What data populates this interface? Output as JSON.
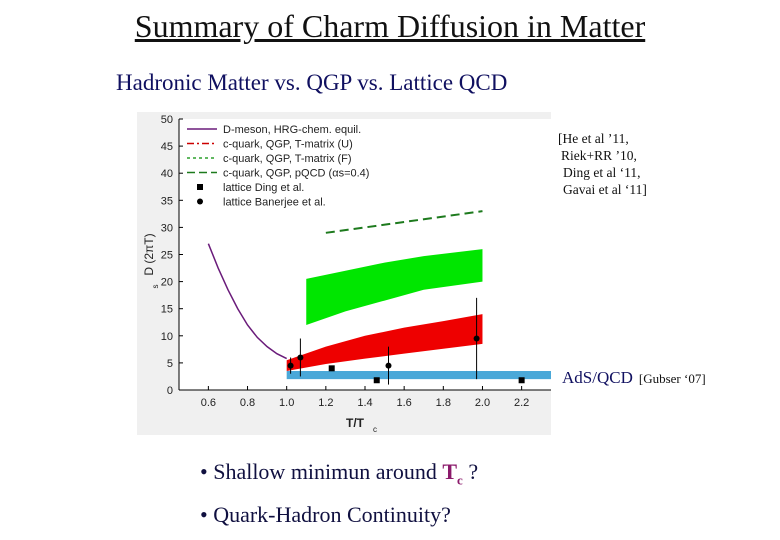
{
  "slide": {
    "title": "Summary of Charm Diffusion in Matter",
    "subtitle": "Hadronic Matter  vs.  QGP  vs.  Lattice QCD",
    "references": [
      "[He et al ’11,",
      "Riek+RR ’10,",
      "Ding et al ‘11,",
      "Gavai et al ‘11]"
    ],
    "ads_label": "AdS/QCD",
    "ads_cite": "[Gubser ‘07]",
    "bullets": {
      "b1_prefix": "• Shallow minimun around ",
      "b1_symbol": "T",
      "b1_sub": "c",
      "b1_suffix": " ?",
      "b2": "• Quark-Hadron Continuity?"
    }
  },
  "chart_data": {
    "type": "line",
    "xlabel_main": "T/T",
    "xlabel_sub": "c",
    "ylabel": "D (2πT)",
    "ylabel_sub": "s",
    "xlim": [
      0.45,
      2.35
    ],
    "ylim": [
      0,
      50
    ],
    "xticks": [
      0.6,
      0.8,
      1.0,
      1.2,
      1.4,
      1.6,
      1.8,
      2.0,
      2.2
    ],
    "yticks": [
      0,
      5,
      10,
      15,
      20,
      25,
      30,
      35,
      40,
      45,
      50
    ],
    "legend": [
      {
        "label": "D-meson, HRG-chem. equil.",
        "style": "solid",
        "color": "#6a1b7a"
      },
      {
        "label": "c-quark, QGP, T-matrix (U)",
        "style": "dashdot",
        "color": "#cc0000"
      },
      {
        "label": "c-quark, QGP, T-matrix (F)",
        "style": "dotted",
        "color": "#2da02d"
      },
      {
        "label": "c-quark, QGP, pQCD (αs=0.4)",
        "style": "dashed",
        "color": "#1d7a1d"
      },
      {
        "label": "lattice Ding et al.",
        "style": "square",
        "color": "#000000"
      },
      {
        "label": "lattice Banerjee et al.",
        "style": "circle",
        "color": "#000000"
      }
    ],
    "series": [
      {
        "name": "D-meson, HRG-chem. equil.",
        "x": [
          0.6,
          0.65,
          0.7,
          0.75,
          0.8,
          0.85,
          0.9,
          0.95,
          1.0
        ],
        "y": [
          27,
          22.5,
          18.5,
          15,
          12,
          9.7,
          8,
          6.7,
          5.8
        ]
      },
      {
        "name": "c-quark, QGP, pQCD (αs=0.4)",
        "x": [
          1.2,
          2.0
        ],
        "y": [
          29,
          33
        ]
      },
      {
        "name": "T-matrix band upper (green)",
        "x": [
          1.1,
          1.3,
          1.5,
          1.7,
          2.0
        ],
        "y": [
          20.5,
          22,
          23.5,
          24.7,
          26
        ]
      },
      {
        "name": "T-matrix band lower (green)",
        "x": [
          1.1,
          1.3,
          1.5,
          1.7,
          2.0
        ],
        "y": [
          12,
          14.5,
          16.5,
          18.5,
          20
        ]
      },
      {
        "name": "T-matrix band upper (red)",
        "x": [
          1.0,
          1.2,
          1.4,
          1.6,
          1.8,
          2.0
        ],
        "y": [
          5.5,
          8,
          10,
          11.5,
          12.7,
          14
        ]
      },
      {
        "name": "T-matrix band lower (red)",
        "x": [
          1.0,
          1.2,
          1.4,
          1.6,
          1.8,
          2.0
        ],
        "y": [
          3.5,
          4.8,
          5.8,
          6.7,
          7.6,
          8.5
        ]
      },
      {
        "name": "AdS/QCD band",
        "x": [
          1.0,
          2.35
        ],
        "y_low": [
          2,
          2
        ],
        "y_high": [
          3.5,
          3.5
        ]
      }
    ],
    "lattice_ding": {
      "x": [
        1.46,
        2.2
      ],
      "y": [
        1.8,
        1.8
      ],
      "yerr": [
        0.3,
        0.3
      ]
    },
    "lattice_banerjee": {
      "x": [
        1.02,
        1.07,
        1.52,
        1.97
      ],
      "y": [
        4.5,
        6,
        4.5,
        9.5
      ],
      "yerr": [
        1.5,
        3.5,
        3.5,
        7.5
      ]
    },
    "lattice_banerjee_mid": {
      "x": [
        1.23
      ],
      "y": [
        4
      ]
    }
  }
}
